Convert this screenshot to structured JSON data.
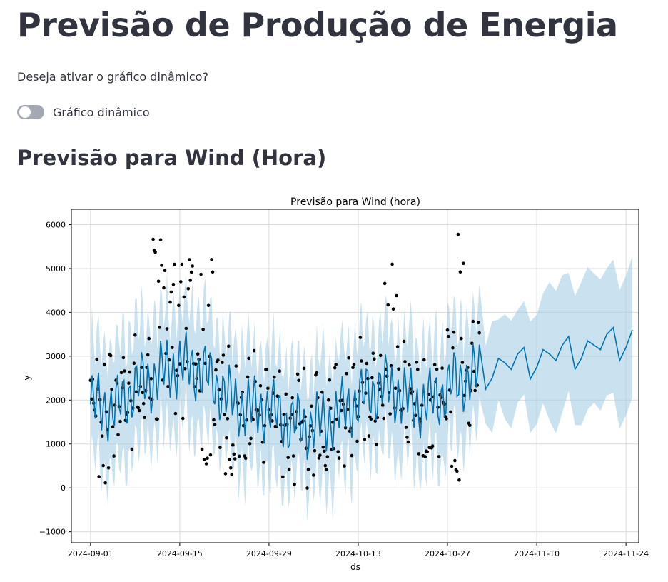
{
  "header": {
    "title": "Previsão de Produção de Energia"
  },
  "controls": {
    "question": "Deseja ativar o gráfico dinâmico?",
    "toggle_label": "Gráfico dinâmico",
    "toggle_on": false
  },
  "section": {
    "title": "Previsão para Wind (Hora)"
  },
  "colors": {
    "forecast_line": "#0072b2",
    "interval_fill": "#9ecae1",
    "observed_points": "#000000"
  },
  "chart_data": {
    "type": "line",
    "title": "Previsão para Wind (hora)",
    "xlabel": "ds",
    "ylabel": "y",
    "x_range": [
      "2024-08-29",
      "2024-11-26"
    ],
    "ylim": [
      -1250,
      6350
    ],
    "y_ticks": [
      -1000,
      0,
      1000,
      2000,
      3000,
      4000,
      5000,
      6000
    ],
    "y_tick_labels": [
      "−1000",
      "0",
      "1000",
      "2000",
      "3000",
      "4000",
      "5000",
      "6000"
    ],
    "x_ticks": [
      "2024-09-01",
      "2024-09-15",
      "2024-09-29",
      "2024-10-13",
      "2024-10-27",
      "2024-11-10",
      "2024-11-24"
    ],
    "grid": true,
    "history_end": "2024-11-01",
    "forecast_end": "2024-11-25",
    "trend_levels": [
      [
        "2024-09-01",
        1900
      ],
      [
        "2024-09-05",
        1800
      ],
      [
        "2024-09-08",
        2300
      ],
      [
        "2024-09-11",
        2500
      ],
      [
        "2024-09-13",
        2700
      ],
      [
        "2024-09-15",
        2800
      ],
      [
        "2024-09-17",
        2750
      ],
      [
        "2024-09-19",
        2600
      ],
      [
        "2024-09-21",
        2300
      ],
      [
        "2024-09-23",
        2000
      ],
      [
        "2024-09-26",
        1800
      ],
      [
        "2024-09-29",
        1800
      ],
      [
        "2024-10-02",
        1500
      ],
      [
        "2024-10-05",
        1400
      ],
      [
        "2024-10-08",
        1500
      ],
      [
        "2024-10-11",
        1800
      ],
      [
        "2024-10-13",
        2000
      ],
      [
        "2024-10-15",
        2200
      ],
      [
        "2024-10-17",
        2300
      ],
      [
        "2024-10-19",
        2200
      ],
      [
        "2024-10-22",
        1900
      ],
      [
        "2024-10-25",
        2000
      ],
      [
        "2024-10-28",
        2400
      ],
      [
        "2024-11-01",
        2600
      ],
      [
        "2024-11-10",
        2700
      ],
      [
        "2024-11-25",
        3100
      ]
    ],
    "forecast_points": [
      [
        "2024-11-02",
        2250
      ],
      [
        "2024-11-03",
        2500
      ],
      [
        "2024-11-04",
        2950
      ],
      [
        "2024-11-05",
        2850
      ],
      [
        "2024-11-06",
        2700
      ],
      [
        "2024-11-07",
        3050
      ],
      [
        "2024-11-08",
        3200
      ],
      [
        "2024-11-09",
        2480
      ],
      [
        "2024-11-10",
        2750
      ],
      [
        "2024-11-11",
        3150
      ],
      [
        "2024-11-12",
        3050
      ],
      [
        "2024-11-13",
        2900
      ],
      [
        "2024-11-14",
        3250
      ],
      [
        "2024-11-15",
        3450
      ],
      [
        "2024-11-16",
        2700
      ],
      [
        "2024-11-17",
        2950
      ],
      [
        "2024-11-18",
        3350
      ],
      [
        "2024-11-19",
        3250
      ],
      [
        "2024-11-20",
        3150
      ],
      [
        "2024-11-21",
        3500
      ],
      [
        "2024-11-22",
        3650
      ],
      [
        "2024-11-23",
        2900
      ],
      [
        "2024-11-24",
        3200
      ],
      [
        "2024-11-25",
        3600
      ]
    ],
    "forecast_interval_halfwidth": [
      [
        "2024-11-02",
        1000
      ],
      [
        "2024-11-10",
        1400
      ],
      [
        "2024-11-25",
        1650
      ]
    ],
    "history_interval_halfwidth": 1350,
    "observed_peaks": [
      [
        "2024-09-11",
        5700
      ],
      [
        "2024-09-13",
        5300
      ],
      [
        "2024-09-16",
        5350
      ],
      [
        "2024-09-19",
        5300
      ],
      [
        "2024-10-18",
        5200
      ],
      [
        "2024-10-29",
        6000
      ]
    ],
    "observed_troughs": [
      [
        "2024-09-03",
        100
      ],
      [
        "2024-09-19",
        400
      ],
      [
        "2024-09-23",
        300
      ],
      [
        "2024-10-07",
        500
      ],
      [
        "2024-10-24",
        500
      ],
      [
        "2024-10-28",
        150
      ]
    ]
  }
}
